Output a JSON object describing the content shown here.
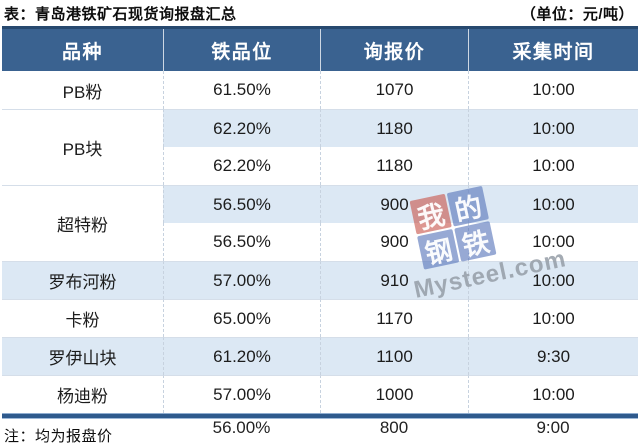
{
  "title": "表：青岛港铁矿石现货询报盘汇总",
  "unit_label": "（单位：元/吨）",
  "note": "注：均为报盘价",
  "table": {
    "headers": [
      "品种",
      "铁品位",
      "询报价",
      "采集时间"
    ],
    "groups": [
      {
        "variety": "PB粉",
        "rows": [
          {
            "grade": "61.50%",
            "price": "1070",
            "time": "10:00"
          }
        ]
      },
      {
        "variety": "PB块",
        "rows": [
          {
            "grade": "62.20%",
            "price": "1180",
            "time": "10:00"
          },
          {
            "grade": "62.20%",
            "price": "1180",
            "time": "10:00"
          }
        ]
      },
      {
        "variety": "超特粉",
        "rows": [
          {
            "grade": "56.50%",
            "price": "900",
            "time": "10:00"
          },
          {
            "grade": "56.50%",
            "price": "900",
            "time": "10:00"
          }
        ]
      },
      {
        "variety": "罗布河粉",
        "rows": [
          {
            "grade": "57.00%",
            "price": "910",
            "time": "10:00"
          }
        ]
      },
      {
        "variety": "卡粉",
        "rows": [
          {
            "grade": "65.00%",
            "price": "1170",
            "time": "10:00"
          }
        ]
      },
      {
        "variety": "罗伊山块",
        "rows": [
          {
            "grade": "61.20%",
            "price": "1100",
            "time": "9:30"
          }
        ]
      },
      {
        "variety": "杨迪粉",
        "rows": [
          {
            "grade": "57.00%",
            "price": "1000",
            "time": "10:00"
          }
        ]
      }
    ],
    "clipped_row": {
      "variety": "",
      "grade": "56.00%",
      "price": "800",
      "time": "9:00"
    }
  },
  "watermark": {
    "squares": [
      "我",
      "的",
      "钢",
      "铁"
    ],
    "brand_text": "Mysteel.com"
  },
  "colors": {
    "header_bg": "#3a6290",
    "stripe": "#dce8f4",
    "border_bar": "#2e5a8d",
    "watermark_red": "#c9574e",
    "watermark_blue": "#5a76bb"
  },
  "chart_data": {
    "type": "table",
    "title": "表：青岛港铁矿石现货询报盘汇总",
    "unit": "元/吨",
    "columns": [
      "品种",
      "铁品位",
      "询报价",
      "采集时间"
    ],
    "rows": [
      [
        "PB粉",
        "61.50%",
        1070,
        "10:00"
      ],
      [
        "PB块",
        "62.20%",
        1180,
        "10:00"
      ],
      [
        "PB块",
        "62.20%",
        1180,
        "10:00"
      ],
      [
        "超特粉",
        "56.50%",
        900,
        "10:00"
      ],
      [
        "超特粉",
        "56.50%",
        900,
        "10:00"
      ],
      [
        "罗布河粉",
        "57.00%",
        910,
        "10:00"
      ],
      [
        "卡粉",
        "65.00%",
        1170,
        "10:00"
      ],
      [
        "罗伊山块",
        "61.20%",
        1100,
        "9:30"
      ],
      [
        "杨迪粉",
        "57.00%",
        1000,
        "10:00"
      ]
    ],
    "note": "注：均为报盘价"
  }
}
